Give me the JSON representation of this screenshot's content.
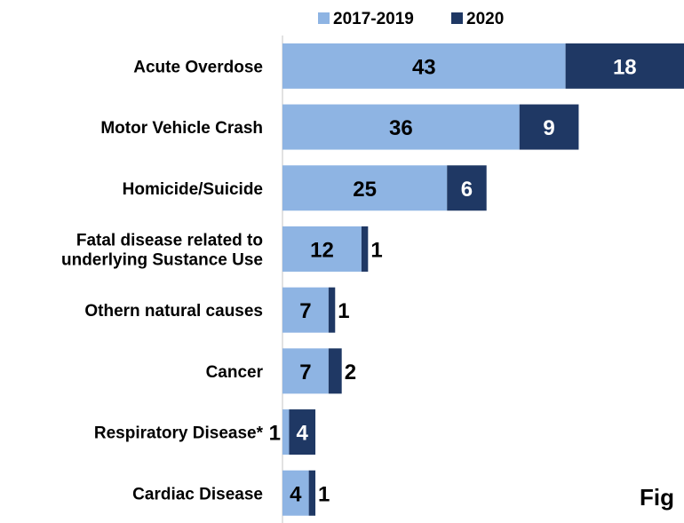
{
  "chart_data": {
    "type": "bar",
    "orientation": "horizontal",
    "stacked": true,
    "categories": [
      [
        "Acute Overdose"
      ],
      [
        "Motor Vehicle Crash"
      ],
      [
        "Homicide/Suicide"
      ],
      [
        "Fatal disease related to",
        "underlying Sustance Use"
      ],
      [
        "Othern natural causes"
      ],
      [
        "Cancer"
      ],
      [
        "Respiratory Disease*"
      ],
      [
        "Cardiac Disease"
      ]
    ],
    "series": [
      {
        "name": "2017-2019",
        "color": "#8eb4e3",
        "values": [
          43,
          36,
          25,
          12,
          7,
          7,
          1,
          4
        ]
      },
      {
        "name": "2020",
        "color": "#1f3864",
        "values": [
          18,
          9,
          6,
          1,
          1,
          2,
          4,
          1
        ]
      }
    ],
    "xlim": [
      0,
      61
    ],
    "grid": false,
    "legend_position": "top"
  },
  "corner_label": "Fig"
}
